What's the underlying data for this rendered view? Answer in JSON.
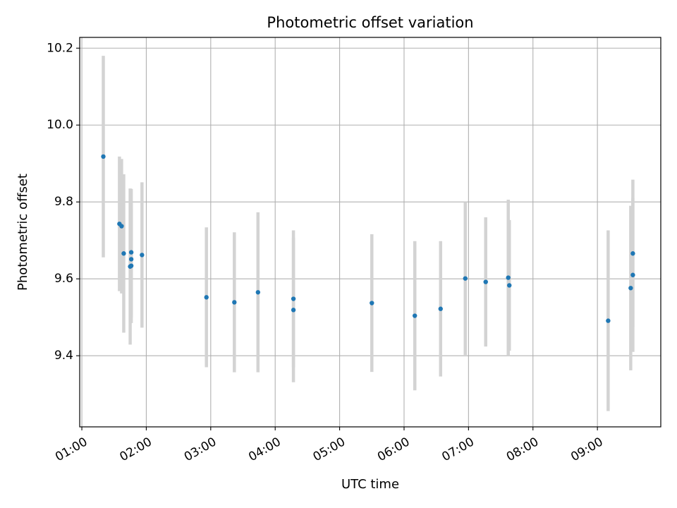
{
  "chart_data": {
    "type": "scatter",
    "title": "Photometric offset variation",
    "xlabel": "UTC time",
    "ylabel": "Photometric offset",
    "xlim": [
      "00:58",
      "09:59"
    ],
    "ylim": [
      9.215,
      10.228
    ],
    "xticks": [
      "01:00",
      "02:00",
      "03:00",
      "04:00",
      "05:00",
      "06:00",
      "07:00",
      "08:00",
      "09:00"
    ],
    "yticks": [
      "9.4",
      "9.6",
      "9.8",
      "10.0",
      "10.2"
    ],
    "grid": true,
    "series": [
      {
        "marker_color": "#1f77b4",
        "errorbar_color": "#d3d3d3",
        "points": [
          {
            "x": "01:20",
            "y": 9.918,
            "err": 0.262
          },
          {
            "x": "01:35",
            "y": 9.743,
            "err": 0.175
          },
          {
            "x": "01:37",
            "y": 9.737,
            "err": 0.175
          },
          {
            "x": "01:39",
            "y": 9.666,
            "err": 0.206
          },
          {
            "x": "01:45",
            "y": 9.632,
            "err": 0.203
          },
          {
            "x": "01:46",
            "y": 9.669,
            "err": 0.165
          },
          {
            "x": "01:46",
            "y": 9.651,
            "err": 0.152
          },
          {
            "x": "01:46",
            "y": 9.634,
            "err": 0.149
          },
          {
            "x": "01:56",
            "y": 9.662,
            "err": 0.189
          },
          {
            "x": "02:56",
            "y": 9.552,
            "err": 0.182
          },
          {
            "x": "03:22",
            "y": 9.539,
            "err": 0.182
          },
          {
            "x": "03:44",
            "y": 9.565,
            "err": 0.208
          },
          {
            "x": "04:17",
            "y": 9.548,
            "err": 0.178
          },
          {
            "x": "04:17",
            "y": 9.519,
            "err": 0.188
          },
          {
            "x": "05:30",
            "y": 9.537,
            "err": 0.179
          },
          {
            "x": "06:10",
            "y": 9.504,
            "err": 0.194
          },
          {
            "x": "06:34",
            "y": 9.522,
            "err": 0.176
          },
          {
            "x": "06:57",
            "y": 9.601,
            "err": 0.199
          },
          {
            "x": "07:16",
            "y": 9.592,
            "err": 0.168
          },
          {
            "x": "07:37",
            "y": 9.603,
            "err": 0.203
          },
          {
            "x": "07:38",
            "y": 9.583,
            "err": 0.17
          },
          {
            "x": "09:10",
            "y": 9.491,
            "err": 0.235
          },
          {
            "x": "09:31",
            "y": 9.576,
            "err": 0.214
          },
          {
            "x": "09:33",
            "y": 9.61,
            "err": 0.2
          },
          {
            "x": "09:33",
            "y": 9.666,
            "err": 0.192
          }
        ]
      }
    ]
  }
}
